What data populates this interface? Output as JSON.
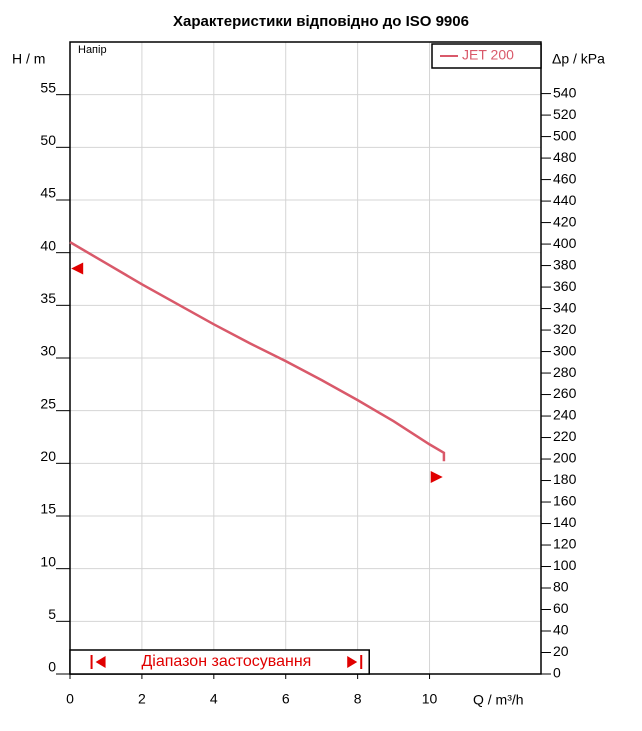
{
  "chart_data": {
    "type": "line",
    "title": "Характеристики відповідно до ISO 9906",
    "y_label": "H / m",
    "y2_label": "Δp / kPa",
    "x_label": "Q / m³/h",
    "curve_label": "Напір",
    "xlim": [
      0,
      13.1
    ],
    "xticks": [
      0,
      2,
      4,
      6,
      8,
      10
    ],
    "ylim": [
      0,
      60
    ],
    "yticks": [
      0,
      5,
      10,
      15,
      20,
      25,
      30,
      35,
      40,
      45,
      50,
      55
    ],
    "y2lim": [
      0,
      588
    ],
    "y2ticks": [
      0,
      20,
      40,
      60,
      80,
      100,
      120,
      140,
      160,
      180,
      200,
      220,
      240,
      260,
      280,
      300,
      320,
      340,
      360,
      380,
      400,
      420,
      440,
      460,
      480,
      500,
      520,
      540
    ],
    "grid": true,
    "legend": "top-right",
    "series": [
      {
        "name": "JET 200",
        "color": "#d9596a",
        "x": [
          0,
          1,
          2,
          3,
          4,
          5,
          6,
          7,
          8,
          9,
          10,
          10.4,
          10.4
        ],
        "values": [
          41,
          39,
          37,
          35.1,
          33.2,
          31.4,
          29.7,
          27.9,
          26.0,
          24.0,
          21.8,
          21.0,
          20.2
        ]
      }
    ],
    "range_markers": {
      "color": "#e00000",
      "x": [
        0.2,
        10.2
      ],
      "values": [
        38.5,
        18.7
      ]
    },
    "range": {
      "label": "Діапазон застосування",
      "from": 0.6,
      "to": 8.1,
      "color": "#e00000"
    }
  }
}
